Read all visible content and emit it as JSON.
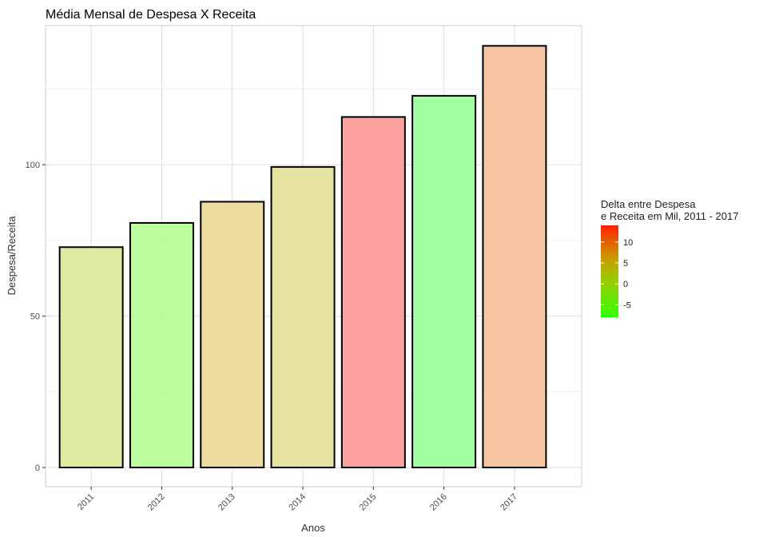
{
  "chart_data": {
    "type": "bar",
    "title": "Média Mensal de Despesa X Receita",
    "xlabel": "Anos",
    "ylabel": "Despesa/Receita",
    "categories": [
      "2011",
      "2012",
      "2013",
      "2014",
      "2015",
      "2016",
      "2017"
    ],
    "values": [
      72.8,
      80.8,
      87.8,
      99.3,
      115.8,
      122.8,
      139.3
    ],
    "delta": [
      -1.0,
      -6.5,
      3.0,
      1.0,
      14.0,
      -8.0,
      8.5
    ],
    "bar_colors": [
      "#dde99a",
      "#b7fb97",
      "#ecd996",
      "#e4e098",
      "#fe9999",
      "#99ff99",
      "#f7c299"
    ],
    "ylim": [
      0,
      146
    ],
    "yticks": [
      0,
      50,
      100
    ],
    "grid": true,
    "legend": {
      "position": "right",
      "title_line1": "Delta entre Despesa",
      "title_line2": "e Receita em Mil, 2011 - 2017",
      "type": "colorbar",
      "range": [
        -8,
        14
      ],
      "ticks": [
        -5,
        0,
        5,
        10
      ],
      "low_color": "#33ff00",
      "high_color": "#ff2200"
    }
  }
}
